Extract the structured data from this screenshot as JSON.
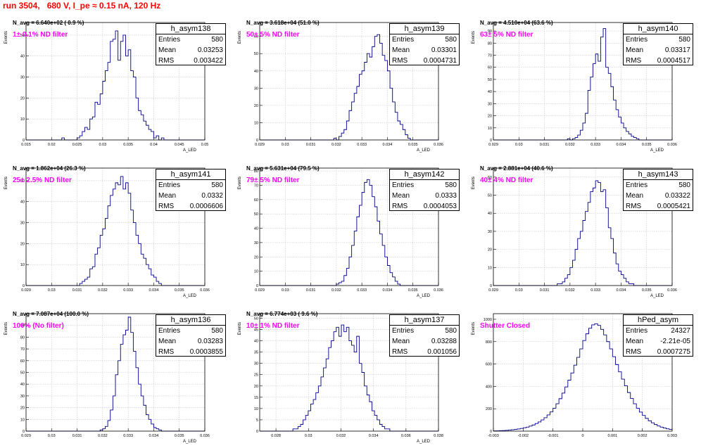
{
  "page": {
    "title": "run 3504,   680 V, I_pe ≈ 0.15 nA, 120 Hz"
  },
  "chart_data": [
    {
      "type": "bar",
      "histogram": "h_asym138",
      "n_avg": "N_avg = 6.640e+02 ( 0.9 %)",
      "filter_note": "1± 0.1% ND filter",
      "ylabel": "Events",
      "xlabel": "A_LED",
      "stats": {
        "entries_label": "Entries",
        "entries": "580",
        "mean_label": "Mean",
        "mean": "0.03253",
        "rms_label": "RMS",
        "rms": "0.003422"
      },
      "xlim": [
        0.015,
        0.05
      ],
      "ylim": [
        0,
        56
      ],
      "x_ticks": [
        "0.015",
        "0.02",
        "0.025",
        "0.03",
        "0.035",
        "0.04",
        "0.045",
        "0.05"
      ],
      "y_ticks": [
        "0",
        "10",
        "20",
        "30",
        "40",
        "50"
      ],
      "x_tick_values": [
        0.015,
        0.02,
        0.025,
        0.03,
        0.035,
        0.04,
        0.045,
        0.05
      ],
      "y_tick_values": [
        0,
        10,
        20,
        30,
        40,
        50
      ],
      "bin_start": 0.015,
      "bin_width": 0.0005,
      "counts": [
        0,
        0,
        0,
        0,
        0,
        0,
        0,
        0,
        0,
        0,
        0,
        0,
        0,
        0,
        1,
        0,
        0,
        0,
        0,
        0,
        1,
        2,
        4,
        6,
        5,
        10,
        11,
        18,
        17,
        22,
        28,
        33,
        37,
        47,
        48,
        52,
        38,
        47,
        50,
        40,
        43,
        33,
        30,
        20,
        14,
        12,
        9,
        7,
        5,
        4,
        1,
        2,
        0,
        1,
        0,
        0,
        0,
        0,
        0,
        0,
        0,
        0,
        0,
        0,
        0,
        0,
        0,
        0,
        0,
        0
      ]
    },
    {
      "type": "bar",
      "histogram": "h_asym139",
      "n_avg": "N_avg = 3.618e+04 (51.0 %)",
      "filter_note": "50± 5% ND filter",
      "ylabel": "Events",
      "xlabel": "A_LED",
      "stats": {
        "entries_label": "Entries",
        "entries": "580",
        "mean_label": "Mean",
        "mean": "0.03301",
        "rms_label": "RMS",
        "rms": "0.0004731"
      },
      "xlim": [
        0.029,
        0.036
      ],
      "ylim": [
        0,
        68
      ],
      "x_ticks": [
        "0.029",
        "0.03",
        "0.031",
        "0.032",
        "0.033",
        "0.034",
        "0.035",
        "0.036"
      ],
      "y_ticks": [
        "0",
        "10",
        "20",
        "30",
        "40",
        "50",
        "60"
      ],
      "x_tick_values": [
        0.029,
        0.03,
        0.031,
        0.032,
        0.033,
        0.034,
        0.035,
        0.036
      ],
      "y_tick_values": [
        0,
        10,
        20,
        30,
        40,
        50,
        60
      ],
      "bin_start": 0.029,
      "bin_width": 0.0001,
      "counts": [
        0,
        0,
        0,
        0,
        0,
        0,
        0,
        0,
        0,
        0,
        0,
        0,
        0,
        0,
        0,
        0,
        0,
        0,
        0,
        0,
        0,
        0,
        0,
        0,
        0,
        0,
        0,
        0,
        0,
        1,
        0,
        2,
        4,
        6,
        11,
        17,
        22,
        27,
        31,
        38,
        40,
        45,
        50,
        48,
        54,
        60,
        61,
        56,
        49,
        46,
        40,
        30,
        22,
        16,
        11,
        9,
        6,
        3,
        1,
        0,
        0,
        0,
        0,
        0,
        0,
        0,
        0,
        0,
        0,
        0
      ]
    },
    {
      "type": "bar",
      "histogram": "h_asym140",
      "n_avg": "N_avg = 4.510e+04 (63.6 %)",
      "filter_note": "63± 5% ND filter",
      "ylabel": "Events",
      "xlabel": "A_LED",
      "stats": {
        "entries_label": "Entries",
        "entries": "580",
        "mean_label": "Mean",
        "mean": "0.03317",
        "rms_label": "RMS",
        "rms": "0.0004517"
      },
      "xlim": [
        0.029,
        0.036
      ],
      "ylim": [
        0,
        97
      ],
      "x_ticks": [
        "0.029",
        "0.03",
        "0.031",
        "0.032",
        "0.033",
        "0.034",
        "0.035",
        "0.036"
      ],
      "y_ticks": [
        "0",
        "10",
        "20",
        "30",
        "40",
        "50",
        "60",
        "70",
        "80",
        "90"
      ],
      "x_tick_values": [
        0.029,
        0.03,
        0.031,
        0.032,
        0.033,
        0.034,
        0.035,
        0.036
      ],
      "y_tick_values": [
        0,
        10,
        20,
        30,
        40,
        50,
        60,
        70,
        80,
        90
      ],
      "bin_start": 0.029,
      "bin_width": 0.0001,
      "counts": [
        0,
        0,
        0,
        0,
        0,
        0,
        0,
        0,
        0,
        0,
        0,
        0,
        0,
        0,
        0,
        0,
        0,
        0,
        0,
        0,
        0,
        0,
        0,
        0,
        0,
        0,
        0,
        0,
        0,
        1,
        0,
        1,
        2,
        4,
        8,
        14,
        22,
        41,
        52,
        63,
        71,
        65,
        85,
        92,
        60,
        55,
        44,
        33,
        25,
        19,
        14,
        10,
        7,
        5,
        3,
        2,
        1,
        0,
        0,
        0,
        0,
        0,
        0,
        0,
        0,
        0,
        0,
        0,
        0,
        0
      ]
    },
    {
      "type": "bar",
      "histogram": "h_asym141",
      "n_avg": "N_avg = 1.862e+04 (26.3 %)",
      "filter_note": "25± 2.5% ND filter",
      "ylabel": "Events",
      "xlabel": "A_LED",
      "stats": {
        "entries_label": "Entries",
        "entries": "580",
        "mean_label": "Mean",
        "mean": "0.0332",
        "rms_label": "RMS",
        "rms": "0.0006606"
      },
      "xlim": [
        0.029,
        0.036
      ],
      "ylim": [
        0,
        56
      ],
      "x_ticks": [
        "0.029",
        "0.03",
        "0.031",
        "0.032",
        "0.033",
        "0.034",
        "0.035",
        "0.036"
      ],
      "y_ticks": [
        "0",
        "10",
        "20",
        "30",
        "40",
        "50"
      ],
      "x_tick_values": [
        0.029,
        0.03,
        0.031,
        0.032,
        0.033,
        0.034,
        0.035,
        0.036
      ],
      "y_tick_values": [
        0,
        10,
        20,
        30,
        40,
        50
      ],
      "bin_start": 0.029,
      "bin_width": 0.0001,
      "counts": [
        0,
        0,
        0,
        0,
        0,
        0,
        0,
        0,
        0,
        0,
        0,
        0,
        0,
        0,
        0,
        0,
        0,
        0,
        0,
        0,
        0,
        1,
        2,
        3,
        4,
        8,
        9,
        15,
        18,
        24,
        27,
        32,
        38,
        43,
        46,
        49,
        48,
        52,
        46,
        49,
        44,
        36,
        30,
        24,
        20,
        15,
        13,
        10,
        8,
        5,
        4,
        2,
        1,
        0,
        0,
        0,
        0,
        0,
        0,
        0,
        0,
        0,
        0,
        0,
        0,
        0,
        0,
        0,
        0,
        0
      ]
    },
    {
      "type": "bar",
      "histogram": "h_asym142",
      "n_avg": "N_avg = 5.631e+04 (79.5 %)",
      "filter_note": "79± 5% ND filter",
      "ylabel": "Events",
      "xlabel": "A_LED",
      "stats": {
        "entries_label": "Entries",
        "entries": "580",
        "mean_label": "Mean",
        "mean": "0.0333",
        "rms_label": "RMS",
        "rms": "0.0004053"
      },
      "xlim": [
        0.029,
        0.036
      ],
      "ylim": [
        0,
        82
      ],
      "x_ticks": [
        "0.029",
        "0.03",
        "0.031",
        "0.032",
        "0.033",
        "0.034",
        "0.035",
        "0.036"
      ],
      "y_ticks": [
        "0",
        "10",
        "20",
        "30",
        "40",
        "50",
        "60",
        "70",
        "80"
      ],
      "x_tick_values": [
        0.029,
        0.03,
        0.031,
        0.032,
        0.033,
        0.034,
        0.035,
        0.036
      ],
      "y_tick_values": [
        0,
        10,
        20,
        30,
        40,
        50,
        60,
        70,
        80
      ],
      "bin_start": 0.029,
      "bin_width": 0.0001,
      "counts": [
        0,
        0,
        0,
        0,
        0,
        0,
        0,
        0,
        0,
        0,
        0,
        0,
        0,
        0,
        0,
        0,
        0,
        0,
        0,
        0,
        0,
        0,
        0,
        0,
        0,
        0,
        0,
        0,
        0,
        0,
        1,
        2,
        3,
        7,
        12,
        20,
        28,
        38,
        48,
        56,
        65,
        72,
        74,
        70,
        62,
        55,
        45,
        36,
        28,
        20,
        14,
        9,
        6,
        3,
        1,
        0,
        0,
        0,
        0,
        0,
        0,
        0,
        0,
        0,
        0,
        0,
        0,
        0,
        0,
        0
      ]
    },
    {
      "type": "bar",
      "histogram": "h_asym143",
      "n_avg": "N_avg = 2.881e+04 (40.6 %)",
      "filter_note": "40± 4% ND filter",
      "ylabel": "Events",
      "xlabel": "A_LED",
      "stats": {
        "entries_label": "Entries",
        "entries": "580",
        "mean_label": "Mean",
        "mean": "0.03322",
        "rms_label": "RMS",
        "rms": "0.0005421"
      },
      "xlim": [
        0.029,
        0.036
      ],
      "ylim": [
        0,
        65
      ],
      "x_ticks": [
        "0.029",
        "0.03",
        "0.031",
        "0.032",
        "0.033",
        "0.034",
        "0.035",
        "0.036"
      ],
      "y_ticks": [
        "0",
        "10",
        "20",
        "30",
        "40",
        "50",
        "60"
      ],
      "x_tick_values": [
        0.029,
        0.03,
        0.031,
        0.032,
        0.033,
        0.034,
        0.035,
        0.036
      ],
      "y_tick_values": [
        0,
        10,
        20,
        30,
        40,
        50,
        60
      ],
      "bin_start": 0.029,
      "bin_width": 0.0001,
      "counts": [
        0,
        0,
        0,
        0,
        0,
        0,
        0,
        0,
        0,
        0,
        0,
        0,
        0,
        0,
        0,
        0,
        0,
        0,
        0,
        0,
        0,
        0,
        0,
        0,
        0,
        1,
        1,
        2,
        4,
        6,
        10,
        14,
        20,
        26,
        30,
        36,
        41,
        46,
        52,
        54,
        58,
        57,
        52,
        53,
        43,
        32,
        26,
        18,
        12,
        8,
        6,
        4,
        2,
        1,
        1,
        0,
        0,
        0,
        0,
        0,
        0,
        0,
        0,
        0,
        0,
        0,
        0,
        0,
        0,
        0
      ]
    },
    {
      "type": "bar",
      "histogram": "h_asym136",
      "n_avg": "N_avg = 7.087e+04 (100.0 %)",
      "filter_note": "100% (No filter)",
      "ylabel": "Events",
      "xlabel": "A_LED",
      "stats": {
        "entries_label": "Entries",
        "entries": "580",
        "mean_label": "Mean",
        "mean": "0.03283",
        "rms_label": "RMS",
        "rms": "0.0003855"
      },
      "xlim": [
        0.029,
        0.036
      ],
      "ylim": [
        0,
        100
      ],
      "x_ticks": [
        "0.029",
        "0.03",
        "0.031",
        "0.032",
        "0.033",
        "0.034",
        "0.035",
        "0.036"
      ],
      "y_ticks": [
        "0",
        "10",
        "20",
        "30",
        "40",
        "50",
        "60",
        "70",
        "80",
        "90"
      ],
      "x_tick_values": [
        0.029,
        0.03,
        0.031,
        0.032,
        0.033,
        0.034,
        0.035,
        0.036
      ],
      "y_tick_values": [
        0,
        10,
        20,
        30,
        40,
        50,
        60,
        70,
        80,
        90
      ],
      "bin_start": 0.029,
      "bin_width": 0.0001,
      "counts": [
        0,
        0,
        0,
        0,
        0,
        0,
        0,
        0,
        0,
        0,
        0,
        0,
        0,
        0,
        0,
        0,
        0,
        0,
        0,
        0,
        0,
        0,
        0,
        0,
        0,
        0,
        0,
        0,
        0,
        1,
        2,
        4,
        9,
        18,
        30,
        48,
        60,
        74,
        82,
        86,
        97,
        84,
        68,
        54,
        40,
        30,
        22,
        14,
        10,
        6,
        3,
        2,
        1,
        0,
        0,
        0,
        0,
        0,
        0,
        0,
        0,
        0,
        0,
        0,
        0,
        0,
        0,
        0,
        0,
        0
      ]
    },
    {
      "type": "bar",
      "histogram": "h_asym137",
      "n_avg": "N_avg = 6.774e+03 ( 9.6 %)",
      "filter_note": "10± 1% ND filter",
      "ylabel": "Events",
      "xlabel": "A_LED",
      "stats": {
        "entries_label": "Entries",
        "entries": "580",
        "mean_label": "Mean",
        "mean": "0.03288",
        "rms_label": "RMS",
        "rms": "0.001056"
      },
      "xlim": [
        0.027,
        0.038
      ],
      "ylim": [
        0,
        52
      ],
      "x_ticks": [
        "0.028",
        "0.03",
        "0.032",
        "0.034",
        "0.036",
        "0.038"
      ],
      "y_ticks": [
        "0",
        "5",
        "10",
        "15",
        "20",
        "25",
        "30",
        "35",
        "40",
        "45",
        "50"
      ],
      "x_tick_values": [
        0.028,
        0.03,
        0.032,
        0.034,
        0.036,
        0.038
      ],
      "y_tick_values": [
        0,
        5,
        10,
        15,
        20,
        25,
        30,
        35,
        40,
        45,
        50
      ],
      "bin_start": 0.027,
      "bin_width": 0.000157,
      "counts": [
        0,
        0,
        0,
        0,
        0,
        0,
        0,
        0,
        0,
        0,
        0,
        0,
        0,
        1,
        1,
        2,
        3,
        5,
        7,
        9,
        12,
        14,
        17,
        20,
        24,
        28,
        32,
        37,
        40,
        44,
        46,
        42,
        47,
        44,
        46,
        40,
        38,
        35,
        42,
        30,
        26,
        20,
        16,
        13,
        9,
        7,
        5,
        3,
        2,
        1,
        1,
        0,
        0,
        0,
        0,
        0,
        0,
        0,
        0,
        0,
        0,
        0,
        0,
        0,
        0,
        0,
        0,
        0,
        0,
        0
      ]
    },
    {
      "type": "bar",
      "histogram": "hPed_asym",
      "n_avg": "",
      "filter_note": "Shutter Closed",
      "ylabel": "Events",
      "xlabel": "",
      "stats": {
        "entries_label": "Entries",
        "entries": "24327",
        "mean_label": "Mean",
        "mean": "-2.21e-05",
        "rms_label": "RMS",
        "rms": "0.0007275"
      },
      "xlim": [
        -0.003,
        0.003
      ],
      "ylim": [
        0,
        1050
      ],
      "x_ticks": [
        "-0.003",
        "-0.002",
        "-0.001",
        "0",
        "0.001",
        "0.002",
        "0.003"
      ],
      "y_ticks": [
        "0",
        "200",
        "400",
        "600",
        "800",
        "1000"
      ],
      "x_tick_values": [
        -0.003,
        -0.002,
        -0.001,
        0,
        0.001,
        0.002,
        0.003
      ],
      "y_tick_values": [
        0,
        200,
        400,
        600,
        800,
        1000
      ],
      "bin_start": -0.003,
      "bin_width": 0.0001,
      "counts": [
        2,
        3,
        4,
        5,
        7,
        9,
        12,
        15,
        19,
        24,
        30,
        36,
        45,
        55,
        68,
        82,
        100,
        120,
        145,
        172,
        205,
        245,
        290,
        340,
        395,
        455,
        520,
        590,
        660,
        735,
        810,
        870,
        920,
        950,
        960,
        945,
        910,
        860,
        800,
        735,
        665,
        595,
        530,
        465,
        405,
        345,
        292,
        245,
        205,
        170,
        140,
        114,
        92,
        74,
        59,
        46,
        36,
        28,
        21,
        16,
        12,
        9,
        7,
        5,
        4,
        3,
        2,
        2,
        1,
        1
      ]
    }
  ]
}
